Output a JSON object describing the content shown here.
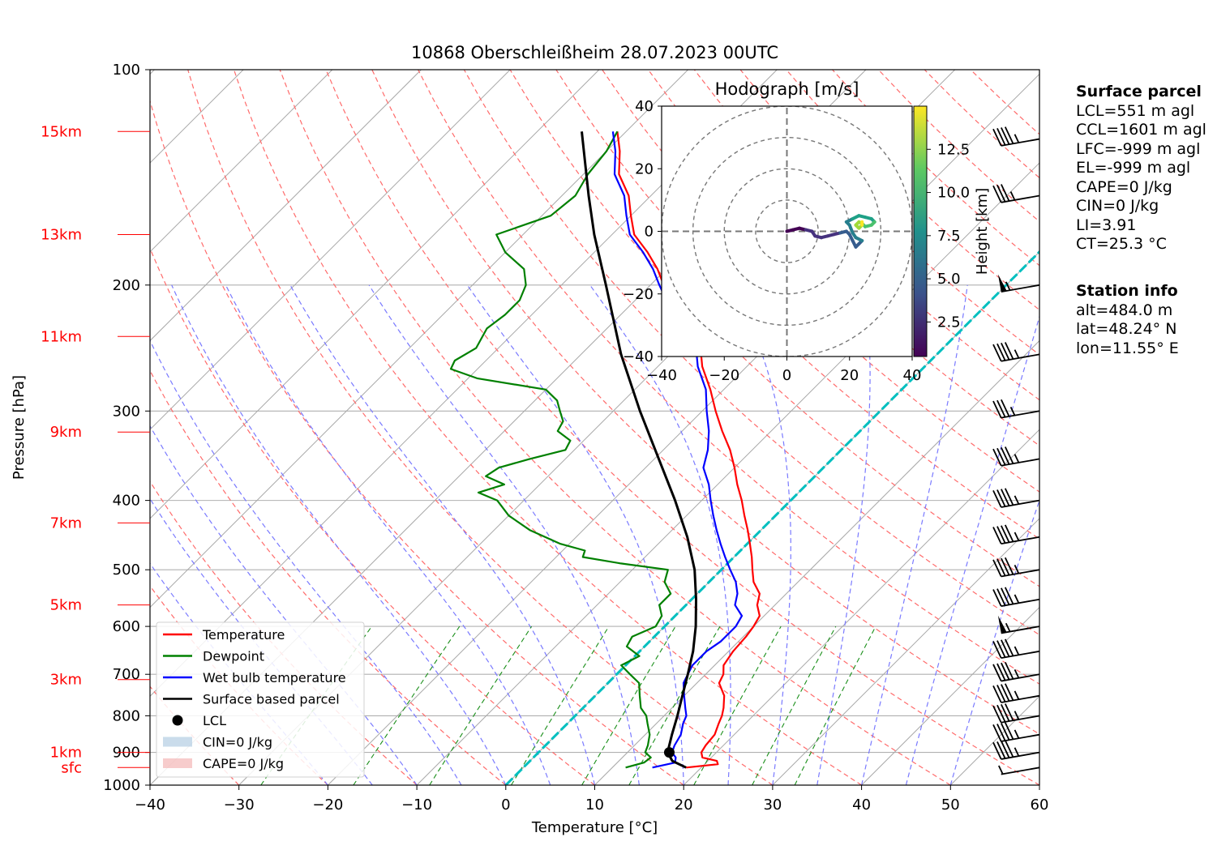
{
  "chart_data": {
    "type": "skew-t",
    "title": "10868 Oberschleißheim 28.07.2023 00UTC",
    "xlabel": "Temperature [°C]",
    "ylabel": "Pressure [hPa]",
    "xlim": [
      -40,
      60
    ],
    "ylim_hpa": [
      1000,
      100
    ],
    "x_ticks": [
      "−40",
      "−30",
      "−20",
      "−10",
      "0",
      "10",
      "20",
      "30",
      "40",
      "50",
      "60"
    ],
    "pressure_ticks": [
      "100",
      "200",
      "300",
      "400",
      "500",
      "600",
      "700",
      "800",
      "900",
      "1000"
    ],
    "height_labels": [
      {
        "p": 945,
        "label": "sfc"
      },
      {
        "p": 900,
        "label": "1km"
      },
      {
        "p": 712,
        "label": "3km"
      },
      {
        "p": 560,
        "label": "5km"
      },
      {
        "p": 430,
        "label": "7km"
      },
      {
        "p": 321,
        "label": "9km"
      },
      {
        "p": 236,
        "label": "11km"
      },
      {
        "p": 170,
        "label": "13km"
      },
      {
        "p": 122,
        "label": "15km"
      }
    ],
    "series": [
      {
        "name": "Temperature",
        "color": "#ff0000",
        "points": [
          [
            945,
            18.3
          ],
          [
            935,
            21.5
          ],
          [
            925,
            21.0
          ],
          [
            915,
            19.0
          ],
          [
            900,
            18.3
          ],
          [
            880,
            18.0
          ],
          [
            850,
            17.8
          ],
          [
            820,
            17.0
          ],
          [
            800,
            16.5
          ],
          [
            780,
            15.8
          ],
          [
            750,
            14.5
          ],
          [
            720,
            12.5
          ],
          [
            700,
            12.0
          ],
          [
            680,
            11.0
          ],
          [
            650,
            10.5
          ],
          [
            620,
            10.3
          ],
          [
            600,
            10.0
          ],
          [
            580,
            9.5
          ],
          [
            560,
            8.0
          ],
          [
            540,
            7.0
          ],
          [
            520,
            5.0
          ],
          [
            500,
            3.5
          ],
          [
            480,
            2.0
          ],
          [
            460,
            0.3
          ],
          [
            440,
            -1.5
          ],
          [
            420,
            -3.5
          ],
          [
            400,
            -5.5
          ],
          [
            380,
            -7.8
          ],
          [
            360,
            -10.0
          ],
          [
            340,
            -12.5
          ],
          [
            320,
            -15.5
          ],
          [
            300,
            -18.5
          ],
          [
            280,
            -21.5
          ],
          [
            260,
            -25.0
          ],
          [
            250,
            -26.5
          ],
          [
            240,
            -28.0
          ],
          [
            230,
            -30.5
          ],
          [
            220,
            -33.5
          ],
          [
            210,
            -36.0
          ],
          [
            200,
            -38.5
          ],
          [
            190,
            -41.0
          ],
          [
            180,
            -44.0
          ],
          [
            170,
            -47.5
          ],
          [
            160,
            -50.0
          ],
          [
            150,
            -52.5
          ],
          [
            140,
            -56.0
          ],
          [
            130,
            -58.5
          ],
          [
            122,
            -61.0
          ]
        ]
      },
      {
        "name": "Dewpoint",
        "color": "#008000",
        "points": [
          [
            945,
            11.5
          ],
          [
            930,
            13.0
          ],
          [
            915,
            13.2
          ],
          [
            900,
            12.0
          ],
          [
            880,
            11.5
          ],
          [
            850,
            10.5
          ],
          [
            820,
            9.0
          ],
          [
            800,
            8.0
          ],
          [
            780,
            6.5
          ],
          [
            750,
            5.0
          ],
          [
            720,
            3.5
          ],
          [
            700,
            1.5
          ],
          [
            680,
            -0.5
          ],
          [
            660,
            0.5
          ],
          [
            640,
            -2.0
          ],
          [
            620,
            -2.5
          ],
          [
            600,
            -1.0
          ],
          [
            580,
            -1.5
          ],
          [
            560,
            -3.0
          ],
          [
            540,
            -3.0
          ],
          [
            520,
            -5.0
          ],
          [
            500,
            -6.0
          ],
          [
            490,
            -12.0
          ],
          [
            480,
            -17.0
          ],
          [
            470,
            -17.5
          ],
          [
            460,
            -21.0
          ],
          [
            440,
            -26.0
          ],
          [
            420,
            -30.0
          ],
          [
            400,
            -33.0
          ],
          [
            390,
            -36.0
          ],
          [
            380,
            -34.0
          ],
          [
            370,
            -37.0
          ],
          [
            360,
            -36.5
          ],
          [
            350,
            -34.0
          ],
          [
            340,
            -31.0
          ],
          [
            330,
            -31.5
          ],
          [
            320,
            -34.0
          ],
          [
            310,
            -34.5
          ],
          [
            300,
            -36.0
          ],
          [
            290,
            -37.5
          ],
          [
            280,
            -40.0
          ],
          [
            270,
            -49.0
          ],
          [
            262,
            -53.0
          ],
          [
            255,
            -53.5
          ],
          [
            245,
            -52.5
          ],
          [
            230,
            -53.5
          ],
          [
            220,
            -53.0
          ],
          [
            210,
            -53.0
          ],
          [
            200,
            -54.0
          ],
          [
            190,
            -56.0
          ],
          [
            180,
            -60.0
          ],
          [
            170,
            -63.0
          ],
          [
            160,
            -59.0
          ],
          [
            150,
            -58.5
          ],
          [
            140,
            -59.5
          ],
          [
            130,
            -60.0
          ],
          [
            122,
            -61.0
          ]
        ]
      },
      {
        "name": "Wet bulb temperature",
        "color": "#0000ff",
        "points": [
          [
            945,
            14.5
          ],
          [
            930,
            16.5
          ],
          [
            915,
            16.0
          ],
          [
            900,
            15.0
          ],
          [
            880,
            14.5
          ],
          [
            850,
            14.0
          ],
          [
            820,
            13.0
          ],
          [
            800,
            12.5
          ],
          [
            780,
            11.5
          ],
          [
            750,
            10.0
          ],
          [
            720,
            8.5
          ],
          [
            700,
            8.0
          ],
          [
            680,
            7.5
          ],
          [
            650,
            7.5
          ],
          [
            630,
            8.0
          ],
          [
            600,
            8.0
          ],
          [
            580,
            7.5
          ],
          [
            560,
            5.5
          ],
          [
            540,
            4.5
          ],
          [
            520,
            3.0
          ],
          [
            500,
            1.0
          ],
          [
            480,
            -1.0
          ],
          [
            460,
            -3.0
          ],
          [
            440,
            -5.0
          ],
          [
            420,
            -7.0
          ],
          [
            400,
            -9.0
          ],
          [
            380,
            -11.0
          ],
          [
            360,
            -13.5
          ],
          [
            340,
            -15.0
          ],
          [
            320,
            -17.0
          ],
          [
            300,
            -19.5
          ],
          [
            280,
            -22.0
          ],
          [
            260,
            -25.5
          ],
          [
            250,
            -27.0
          ],
          [
            240,
            -28.5
          ],
          [
            230,
            -31.0
          ],
          [
            220,
            -34.0
          ],
          [
            210,
            -36.5
          ],
          [
            200,
            -39.0
          ],
          [
            190,
            -41.5
          ],
          [
            180,
            -44.5
          ],
          [
            170,
            -48.0
          ],
          [
            160,
            -50.5
          ],
          [
            150,
            -53.0
          ],
          [
            140,
            -56.5
          ],
          [
            130,
            -59.0
          ],
          [
            122,
            -61.5
          ]
        ]
      },
      {
        "name": "Surface based parcel",
        "color": "#000000",
        "points": [
          [
            945,
            18.3
          ],
          [
            925,
            16.0
          ],
          [
            900,
            14.5
          ],
          [
            850,
            13.0
          ],
          [
            800,
            11.5
          ],
          [
            750,
            9.8
          ],
          [
            700,
            8.0
          ],
          [
            650,
            6.0
          ],
          [
            600,
            3.5
          ],
          [
            550,
            0.5
          ],
          [
            500,
            -3.0
          ],
          [
            450,
            -7.5
          ],
          [
            400,
            -13.0
          ],
          [
            350,
            -19.5
          ],
          [
            300,
            -27.0
          ],
          [
            250,
            -35.5
          ],
          [
            200,
            -45.0
          ],
          [
            170,
            -52.0
          ],
          [
            150,
            -57.0
          ],
          [
            122,
            -65.0
          ]
        ]
      }
    ],
    "lcl": {
      "label": "LCL",
      "p": 900,
      "t": 14.7
    },
    "zero_isotherm": {
      "color": "#00bfbf"
    },
    "wind_barbs": [
      {
        "p": 945,
        "speed_kt": 5,
        "flag": false
      },
      {
        "p": 900,
        "speed_kt": 45
      },
      {
        "p": 850,
        "speed_kt": 45
      },
      {
        "p": 800,
        "speed_kt": 45
      },
      {
        "p": 750,
        "speed_kt": 45
      },
      {
        "p": 700,
        "speed_kt": 45
      },
      {
        "p": 650,
        "speed_kt": 45
      },
      {
        "p": 600,
        "speed_kt": 55
      },
      {
        "p": 550,
        "speed_kt": 45
      },
      {
        "p": 500,
        "speed_kt": 45
      },
      {
        "p": 450,
        "speed_kt": 45
      },
      {
        "p": 400,
        "speed_kt": 45
      },
      {
        "p": 350,
        "speed_kt": 45
      },
      {
        "p": 300,
        "speed_kt": 35
      },
      {
        "p": 250,
        "speed_kt": 45
      },
      {
        "p": 200,
        "speed_kt": 55
      },
      {
        "p": 150,
        "speed_kt": 35
      },
      {
        "p": 125,
        "speed_kt": 45
      }
    ],
    "legend": {
      "placement": "lower-left",
      "entries": [
        "Temperature",
        "Dewpoint",
        "Wet bulb temperature",
        "Surface based parcel",
        "LCL",
        "CIN=0 J/kg",
        "CAPE=0 J/kg"
      ]
    },
    "hodograph": {
      "title": "Hodograph [m/s]",
      "xlim": [
        -40,
        40
      ],
      "ylim": [
        -40,
        40
      ],
      "ticks": [
        "−40",
        "−20",
        "0",
        "20",
        "40"
      ],
      "rings": [
        10,
        20,
        30,
        40
      ],
      "colorbar_label": "Height [km]",
      "colorbar_ticks": [
        "2.5",
        "5.0",
        "7.5",
        "10.0",
        "12.5"
      ],
      "colorbar_range": [
        0.5,
        15
      ],
      "points": [
        [
          0,
          0,
          0.5
        ],
        [
          2,
          0.5,
          0.7
        ],
        [
          4,
          1,
          1.0
        ],
        [
          6,
          0.5,
          1.3
        ],
        [
          8,
          0,
          1.6
        ],
        [
          9,
          -1.5,
          2.0
        ],
        [
          11,
          -2,
          2.4
        ],
        [
          13,
          -1.5,
          2.8
        ],
        [
          15,
          -1,
          3.2
        ],
        [
          17,
          -0.5,
          3.5
        ],
        [
          19,
          0,
          3.8
        ],
        [
          20,
          -1,
          4.1
        ],
        [
          21,
          -3,
          4.4
        ],
        [
          22,
          -5,
          4.8
        ],
        [
          23,
          -4,
          5.2
        ],
        [
          24,
          -3,
          5.6
        ],
        [
          22,
          -2,
          6.0
        ],
        [
          21,
          -0.5,
          6.4
        ],
        [
          20,
          2,
          6.8
        ],
        [
          19,
          3,
          7.2
        ],
        [
          21,
          4,
          7.6
        ],
        [
          23,
          5,
          8.0
        ],
        [
          25,
          4.5,
          8.5
        ],
        [
          27,
          4,
          9.0
        ],
        [
          28,
          3,
          9.6
        ],
        [
          27,
          2,
          10.2
        ],
        [
          25,
          1.5,
          10.8
        ],
        [
          24,
          2.5,
          11.4
        ],
        [
          23,
          3,
          12.0
        ],
        [
          22,
          2,
          12.6
        ],
        [
          23,
          1,
          13.2
        ],
        [
          24,
          2,
          13.8
        ],
        [
          24,
          3,
          14.4
        ]
      ]
    }
  },
  "surface_parcel": {
    "header": "Surface parcel",
    "lines": [
      "LCL=551 m agl",
      "CCL=1601 m agl",
      "LFC=-999 m agl",
      "EL=-999 m agl",
      "CAPE=0 J/kg",
      "CIN=0 J/kg",
      "LI=3.91",
      "CT=25.3 °C"
    ]
  },
  "station_info": {
    "header": "Station info",
    "lines": [
      "alt=484.0 m",
      "lat=48.24° N",
      "lon=11.55° E"
    ]
  }
}
